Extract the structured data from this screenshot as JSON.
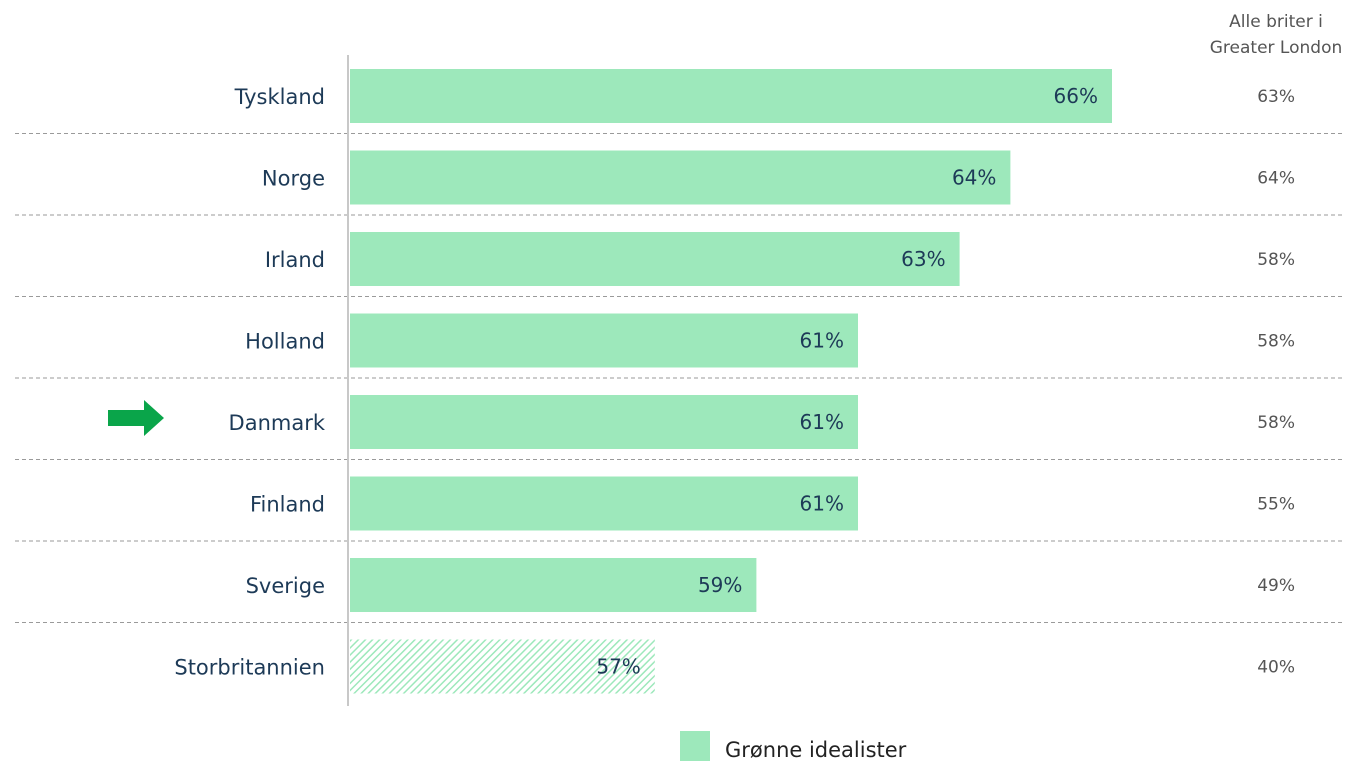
{
  "chart_data": {
    "type": "bar",
    "orientation": "horizontal",
    "categories": [
      "Tyskland",
      "Norge",
      "Irland",
      "Holland",
      "Danmark",
      "Finland",
      "Sverige",
      "Storbritannien"
    ],
    "series": [
      {
        "name": "Grønne idealister",
        "values": [
          66,
          64,
          63,
          61,
          61,
          61,
          59,
          57
        ],
        "labels": [
          "66%",
          "64%",
          "63%",
          "61%",
          "61%",
          "61%",
          "59%",
          "57%"
        ],
        "color": "#9de8bb"
      }
    ],
    "secondary_column": {
      "header_lines": [
        "Alle briter i",
        "Greater London"
      ],
      "values": [
        63,
        64,
        58,
        58,
        58,
        55,
        49,
        40
      ],
      "labels": [
        "63%",
        "64%",
        "58%",
        "58%",
        "58%",
        "55%",
        "49%",
        "40%"
      ]
    },
    "highlighted_category": "Danmark",
    "hatched_category": "Storbritannien",
    "arrow_color": "#0aa54a",
    "legend": {
      "label": "Grønne idealister",
      "position": "bottom-center"
    },
    "grid": false,
    "row_separators": "dashed"
  }
}
